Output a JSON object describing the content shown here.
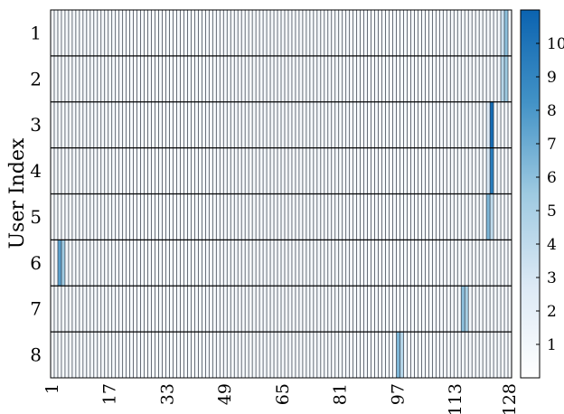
{
  "chart_data": {
    "type": "heatmap",
    "title": "",
    "xlabel": "",
    "ylabel": "User Index",
    "x_ticks": [
      "1",
      "17",
      "33",
      "49",
      "65",
      "81",
      "97",
      "113",
      "128"
    ],
    "y_ticks": [
      "1",
      "2",
      "3",
      "4",
      "5",
      "6",
      "7",
      "8"
    ],
    "x_range": [
      1,
      128
    ],
    "colorbar": {
      "min": 0,
      "max": 11,
      "ticks": [
        "1",
        "2",
        "3",
        "4",
        "5",
        "6",
        "7",
        "8",
        "9",
        "10"
      ],
      "colors": [
        "#ffffff",
        "#dce9f5",
        "#9ecae1",
        "#4292c6",
        "#0b63b0"
      ]
    },
    "grid": true,
    "rows": [
      {
        "user": "1",
        "peaks": [
          {
            "x": 126,
            "value": 3.5
          },
          {
            "x": 127,
            "value": 6.0
          }
        ]
      },
      {
        "user": "2",
        "peaks": [
          {
            "x": 126,
            "value": 4.5
          },
          {
            "x": 127,
            "value": 5.5
          }
        ]
      },
      {
        "user": "3",
        "peaks": [
          {
            "x": 122,
            "value": 2.5
          },
          {
            "x": 123,
            "value": 10.5
          }
        ]
      },
      {
        "user": "4",
        "peaks": [
          {
            "x": 122,
            "value": 3.0
          },
          {
            "x": 123,
            "value": 9.5
          }
        ]
      },
      {
        "user": "5",
        "peaks": [
          {
            "x": 122,
            "value": 6.5
          },
          {
            "x": 123,
            "value": 4.0
          }
        ]
      },
      {
        "user": "6",
        "peaks": [
          {
            "x": 3,
            "value": 7.5
          },
          {
            "x": 4,
            "value": 5.5
          }
        ]
      },
      {
        "user": "7",
        "peaks": [
          {
            "x": 115,
            "value": 6.0
          },
          {
            "x": 116,
            "value": 5.0
          }
        ]
      },
      {
        "user": "8",
        "peaks": [
          {
            "x": 97,
            "value": 6.5
          },
          {
            "x": 98,
            "value": 4.5
          }
        ]
      }
    ],
    "background_level": 0.7
  }
}
